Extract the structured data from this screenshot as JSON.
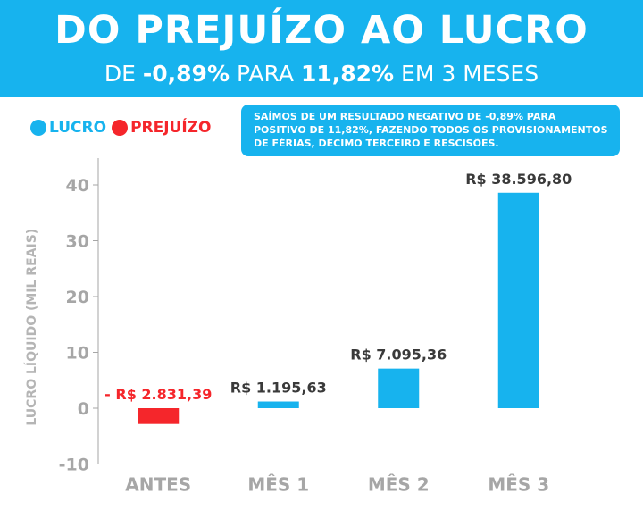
{
  "header": {
    "title": "DO PREJUÍZO AO LUCRO",
    "subtitle_pre": "DE ",
    "subtitle_from": "-0,89%",
    "subtitle_mid": " PARA ",
    "subtitle_to": "11,82%",
    "subtitle_post": " EM 3 MESES"
  },
  "legend": {
    "profit_label": "LUCRO",
    "loss_label": "PREJUÍZO"
  },
  "note": {
    "text": "SAÍMOS DE UM RESULTADO NEGATIVO DE -0,89% PARA POSITIVO DE 11,82%, FAZENDO TODOS OS PROVISIONAMENTOS DE FÉRIAS, DÉCIMO TERCEIRO E RESCISÕES."
  },
  "colors": {
    "profit": "#17b3ee",
    "loss": "#f5262b",
    "axis": "#a6a6a6",
    "label": "#3a3a3a"
  },
  "chart_data": {
    "type": "bar",
    "categories": [
      "ANTES",
      "MÊS 1",
      "MÊS 2",
      "MÊS 3"
    ],
    "values": [
      -2.83139,
      1.19563,
      7.09536,
      38.5968
    ],
    "data_labels": [
      "- R$ 2.831,39",
      "R$ 1.195,63",
      "R$ 7.095,36",
      "R$ 38.596,80"
    ],
    "ylabel": "LUCRO LÍQUIDO (MIL REAIS)",
    "ylim": [
      -10,
      40
    ],
    "yticks": [
      "-10",
      "0",
      "10",
      "20",
      "30",
      "40"
    ],
    "grid": false,
    "legend": "top-left"
  }
}
